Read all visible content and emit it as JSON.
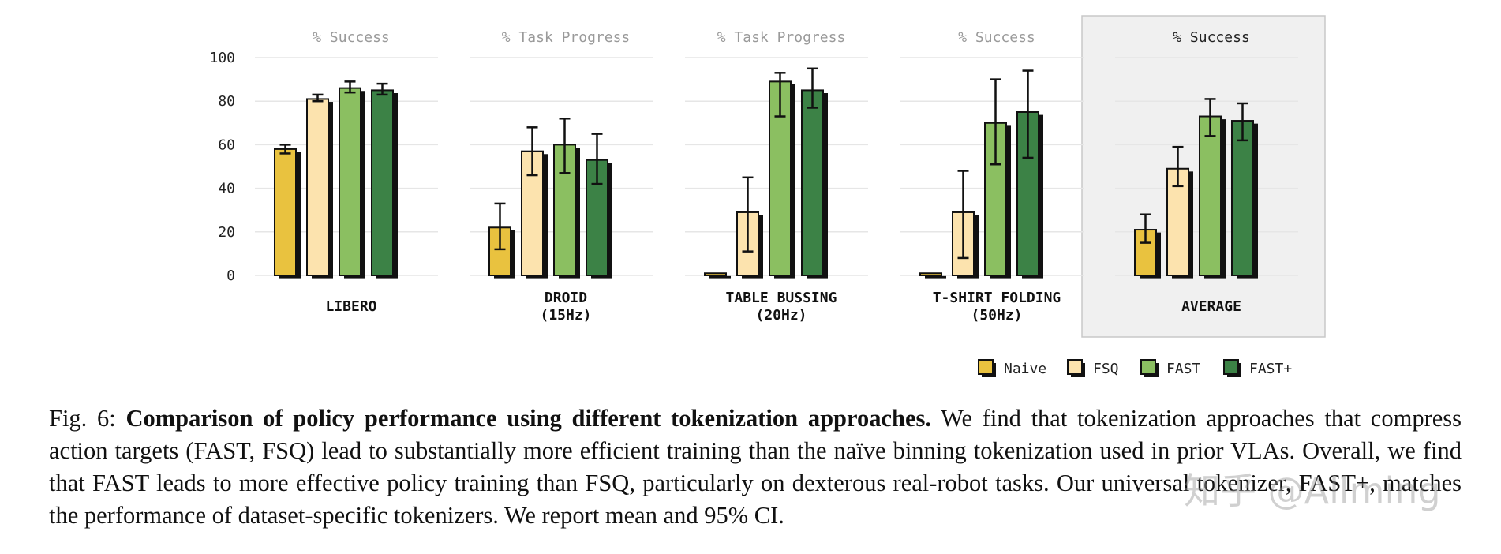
{
  "chart_data": {
    "type": "bar",
    "yticks": [
      "100",
      "80",
      "60",
      "40",
      "20",
      "0"
    ],
    "ylim": [
      0,
      100
    ],
    "series_names": [
      "Naive",
      "FSQ",
      "FAST",
      "FAST+"
    ],
    "colors": {
      "Naive": "#E9C23F",
      "FSQ": "#FCE3AE",
      "FAST": "#8BBF61",
      "FAST+": "#3C8246",
      "shadow": "#111111",
      "avg_panel_bg": "#F0F0F0"
    },
    "panels": [
      {
        "subtitle": "% Success",
        "label_lines": [
          "LIBERO"
        ],
        "values": [
          58,
          81,
          86,
          85
        ],
        "ci": [
          [
            56,
            60
          ],
          [
            80,
            83
          ],
          [
            84,
            89
          ],
          [
            83,
            88
          ]
        ]
      },
      {
        "subtitle": "% Task Progress",
        "label_lines": [
          "DROID",
          "(15Hz)"
        ],
        "values": [
          22,
          57,
          60,
          53
        ],
        "ci": [
          [
            12,
            33
          ],
          [
            46,
            68
          ],
          [
            47,
            72
          ],
          [
            42,
            65
          ]
        ]
      },
      {
        "subtitle": "% Task Progress",
        "label_lines": [
          "TABLE BUSSING",
          "(20Hz)"
        ],
        "values": [
          1,
          29,
          89,
          85
        ],
        "ci": [
          [
            1,
            1
          ],
          [
            11,
            45
          ],
          [
            73,
            93
          ],
          [
            77,
            95
          ]
        ]
      },
      {
        "subtitle": "% Success",
        "label_lines": [
          "T-SHIRT FOLDING",
          "(50Hz)"
        ],
        "values": [
          1,
          29,
          70,
          75
        ],
        "ci": [
          [
            1,
            1
          ],
          [
            8,
            48
          ],
          [
            51,
            90
          ],
          [
            54,
            94
          ]
        ]
      },
      {
        "subtitle": "% Success",
        "label_lines": [
          "AVERAGE"
        ],
        "values": [
          21,
          49,
          73,
          71
        ],
        "ci": [
          [
            15,
            28
          ],
          [
            41,
            59
          ],
          [
            64,
            81
          ],
          [
            62,
            79
          ]
        ],
        "highlighted": true
      }
    ]
  },
  "caption": {
    "prefix": "Fig. 6: ",
    "bold": "Comparison of policy performance using different tokenization approaches.",
    "body": " We find that tokenization approaches that compress action targets (FAST, FSQ) lead to substantially more efficient training than the naïve binning tokenization used in prior VLAs. Overall, we find that FAST leads to more effective policy training than FSQ, particularly on dexterous real-robot tasks. Our universal tokenizer, FAST+, matches the performance of dataset-specific tokenizers. We report mean and 95% CI."
  },
  "watermark": "知乎 @Allming"
}
